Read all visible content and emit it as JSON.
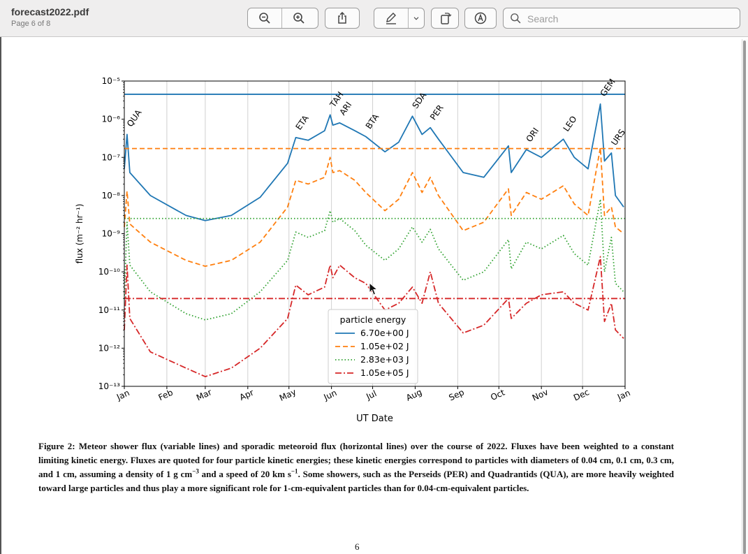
{
  "window": {
    "doc_title": "forecast2022.pdf",
    "doc_subtitle": "Page 6 of 8",
    "toolbar": {
      "icons": [
        "zoom-out-icon",
        "zoom-in-icon",
        "share-icon",
        "markup-pen-icon",
        "chevron-down-icon",
        "rotate-icon",
        "annotate-icon",
        "search-icon"
      ]
    },
    "search": {
      "placeholder": "Search",
      "value": ""
    }
  },
  "page": {
    "caption_lead": "Figure 2: Meteor shower flux (variable lines) and sporadic meteoroid flux (horizontal lines) over the course of 2022. Fluxes have been weighted to a constant limiting kinetic energy. Fluxes are quoted for four particle kinetic energies; these kinetic energies correspond to particles with diameters of 0.04 cm, 0.1 cm, 0.3 cm, and 1 cm, assuming a density of 1 g cm",
    "caption_exp1": "−3",
    "caption_mid": " and a speed of 20 km s",
    "caption_exp2": "−1",
    "caption_tail": ". Some showers, such as the Perseids (PER) and Quadrantids (QUA), are more heavily weighted toward large particles and thus play a more significant role for 1-cm-equivalent particles than for 0.04-cm-equivalent particles.",
    "page_number": "6"
  },
  "chart_data": {
    "type": "line",
    "xlabel": "UT Date",
    "ylabel": "flux (m⁻² hr⁻¹)",
    "yscale": "log",
    "ylim": [
      "1e-13",
      "1e-5"
    ],
    "xlim": [
      "2022-01-01",
      "2023-01-01"
    ],
    "x_ticks": [
      "Jan",
      "Feb",
      "Mar",
      "Apr",
      "May",
      "Jun",
      "Jul",
      "Aug",
      "Sep",
      "Oct",
      "Nov",
      "Dec",
      "Jan"
    ],
    "y_ticks": [
      "10⁻⁵",
      "10⁻⁶",
      "10⁻⁷",
      "10⁻⁸",
      "10⁻⁹",
      "10⁻¹⁰",
      "10⁻¹¹",
      "10⁻¹²",
      "10⁻¹³"
    ],
    "grid": "vertical",
    "legend": {
      "title": "particle energy",
      "placement": "lower-center"
    },
    "shower_labels": [
      {
        "name": "QUA",
        "date": "2022-01-03"
      },
      {
        "name": "ETA",
        "date": "2022-05-06"
      },
      {
        "name": "TAH",
        "date": "2022-05-31"
      },
      {
        "name": "ARI",
        "date": "2022-06-07"
      },
      {
        "name": "BTA",
        "date": "2022-06-26"
      },
      {
        "name": "SDA",
        "date": "2022-07-30"
      },
      {
        "name": "PER",
        "date": "2022-08-12"
      },
      {
        "name": "ORI",
        "date": "2022-10-21"
      },
      {
        "name": "LEO",
        "date": "2022-11-17"
      },
      {
        "name": "GEM",
        "date": "2022-12-14"
      },
      {
        "name": "URS",
        "date": "2022-12-22"
      }
    ],
    "series": [
      {
        "name": "6.70e+00 J",
        "color": "#1f77b4",
        "style": "solid",
        "sporadic": "4.5e-6",
        "points": [
          [
            "2022-01-01",
            "5e-8"
          ],
          [
            "2022-01-03",
            "4e-7"
          ],
          [
            "2022-01-05",
            "4e-8"
          ],
          [
            "2022-01-20",
            "1e-8"
          ],
          [
            "2022-02-15",
            "3e-9"
          ],
          [
            "2022-03-01",
            "2.2e-9"
          ],
          [
            "2022-03-20",
            "3e-9"
          ],
          [
            "2022-04-10",
            "9e-9"
          ],
          [
            "2022-04-30",
            "7e-8"
          ],
          [
            "2022-05-06",
            "3.3e-7"
          ],
          [
            "2022-05-15",
            "2.8e-7"
          ],
          [
            "2022-05-27",
            "5e-7"
          ],
          [
            "2022-05-31",
            "1.3e-6"
          ],
          [
            "2022-06-02",
            "7e-7"
          ],
          [
            "2022-06-07",
            "8e-7"
          ],
          [
            "2022-06-18",
            "5e-7"
          ],
          [
            "2022-06-26",
            "3.5e-7"
          ],
          [
            "2022-07-10",
            "1.4e-7"
          ],
          [
            "2022-07-20",
            "2.5e-7"
          ],
          [
            "2022-07-30",
            "1.2e-6"
          ],
          [
            "2022-08-06",
            "4e-7"
          ],
          [
            "2022-08-12",
            "6e-7"
          ],
          [
            "2022-08-18",
            "3e-7"
          ],
          [
            "2022-09-05",
            "4e-8"
          ],
          [
            "2022-09-20",
            "3e-8"
          ],
          [
            "2022-10-08",
            "2e-7"
          ],
          [
            "2022-10-10",
            "4e-8"
          ],
          [
            "2022-10-21",
            "1.6e-7"
          ],
          [
            "2022-11-01",
            "1e-7"
          ],
          [
            "2022-11-17",
            "3e-7"
          ],
          [
            "2022-11-25",
            "1e-7"
          ],
          [
            "2022-12-05",
            "5e-8"
          ],
          [
            "2022-12-14",
            "2.5e-6"
          ],
          [
            "2022-12-17",
            "8e-8"
          ],
          [
            "2022-12-22",
            "1.3e-7"
          ],
          [
            "2022-12-25",
            "1e-8"
          ],
          [
            "2022-12-31",
            "5e-9"
          ]
        ]
      },
      {
        "name": "1.05e+02 J",
        "color": "#ff7f0e",
        "style": "dashed",
        "sporadic": "1.7e-7",
        "points": [
          [
            "2022-01-01",
            "1.5e-9"
          ],
          [
            "2022-01-03",
            "1.3e-8"
          ],
          [
            "2022-01-05",
            "1.8e-9"
          ],
          [
            "2022-01-20",
            "6e-10"
          ],
          [
            "2022-02-15",
            "2e-10"
          ],
          [
            "2022-03-01",
            "1.4e-10"
          ],
          [
            "2022-03-20",
            "2e-10"
          ],
          [
            "2022-04-10",
            "6e-10"
          ],
          [
            "2022-04-30",
            "5e-9"
          ],
          [
            "2022-05-06",
            "2.5e-8"
          ],
          [
            "2022-05-15",
            "2e-8"
          ],
          [
            "2022-05-27",
            "3e-8"
          ],
          [
            "2022-05-31",
            "1e-7"
          ],
          [
            "2022-06-02",
            "4e-8"
          ],
          [
            "2022-06-07",
            "4.5e-8"
          ],
          [
            "2022-06-18",
            "2.5e-8"
          ],
          [
            "2022-06-26",
            "1.2e-8"
          ],
          [
            "2022-07-10",
            "4e-9"
          ],
          [
            "2022-07-20",
            "8e-9"
          ],
          [
            "2022-07-30",
            "4e-8"
          ],
          [
            "2022-08-06",
            "1.2e-8"
          ],
          [
            "2022-08-12",
            "3e-8"
          ],
          [
            "2022-08-18",
            "1e-8"
          ],
          [
            "2022-09-05",
            "1.2e-9"
          ],
          [
            "2022-09-20",
            "2e-9"
          ],
          [
            "2022-10-08",
            "1.5e-8"
          ],
          [
            "2022-10-10",
            "3e-9"
          ],
          [
            "2022-10-21",
            "1.2e-8"
          ],
          [
            "2022-11-01",
            "8e-9"
          ],
          [
            "2022-11-17",
            "1.8e-8"
          ],
          [
            "2022-11-25",
            "6e-9"
          ],
          [
            "2022-12-05",
            "3e-9"
          ],
          [
            "2022-12-14",
            "1.8e-7"
          ],
          [
            "2022-12-17",
            "3e-9"
          ],
          [
            "2022-12-22",
            "5e-9"
          ],
          [
            "2022-12-25",
            "1.5e-9"
          ],
          [
            "2022-12-31",
            "1e-9"
          ]
        ]
      },
      {
        "name": "2.83e+03 J",
        "color": "#2ca02c",
        "style": "dotted",
        "sporadic": "2.5e-9",
        "points": [
          [
            "2022-01-01",
            "2e-11"
          ],
          [
            "2022-01-03",
            "2e-9"
          ],
          [
            "2022-01-05",
            "1.5e-10"
          ],
          [
            "2022-01-20",
            "3e-11"
          ],
          [
            "2022-02-15",
            "8e-12"
          ],
          [
            "2022-03-01",
            "5.5e-12"
          ],
          [
            "2022-03-20",
            "8e-12"
          ],
          [
            "2022-04-10",
            "3e-11"
          ],
          [
            "2022-04-30",
            "2e-10"
          ],
          [
            "2022-05-06",
            "1.1e-9"
          ],
          [
            "2022-05-15",
            "8e-10"
          ],
          [
            "2022-05-27",
            "1.2e-9"
          ],
          [
            "2022-05-31",
            "4e-9"
          ],
          [
            "2022-06-02",
            "2e-9"
          ],
          [
            "2022-06-07",
            "2.5e-9"
          ],
          [
            "2022-06-18",
            "1.2e-9"
          ],
          [
            "2022-06-26",
            "5e-10"
          ],
          [
            "2022-07-10",
            "2e-10"
          ],
          [
            "2022-07-20",
            "4e-10"
          ],
          [
            "2022-07-30",
            "1.5e-9"
          ],
          [
            "2022-08-06",
            "6e-10"
          ],
          [
            "2022-08-12",
            "1.3e-9"
          ],
          [
            "2022-08-18",
            "4e-10"
          ],
          [
            "2022-09-05",
            "6e-11"
          ],
          [
            "2022-09-20",
            "1e-10"
          ],
          [
            "2022-10-08",
            "7e-10"
          ],
          [
            "2022-10-10",
            "1.2e-10"
          ],
          [
            "2022-10-21",
            "6e-10"
          ],
          [
            "2022-11-01",
            "4e-10"
          ],
          [
            "2022-11-17",
            "9e-10"
          ],
          [
            "2022-11-25",
            "3e-10"
          ],
          [
            "2022-12-05",
            "1.5e-10"
          ],
          [
            "2022-12-14",
            "8e-9"
          ],
          [
            "2022-12-17",
            "1e-10"
          ],
          [
            "2022-12-22",
            "8e-10"
          ],
          [
            "2022-12-25",
            "5e-11"
          ],
          [
            "2022-12-31",
            "3e-11"
          ]
        ]
      },
      {
        "name": "1.05e+05 J",
        "color": "#d62728",
        "style": "dashdot",
        "sporadic": "2e-11",
        "points": [
          [
            "2022-01-01",
            "3e-12"
          ],
          [
            "2022-01-03",
            "1.5e-10"
          ],
          [
            "2022-01-05",
            "6e-12"
          ],
          [
            "2022-01-20",
            "8e-13"
          ],
          [
            "2022-02-15",
            "3e-13"
          ],
          [
            "2022-03-01",
            "1.8e-13"
          ],
          [
            "2022-03-20",
            "3e-13"
          ],
          [
            "2022-04-10",
            "1e-12"
          ],
          [
            "2022-04-30",
            "6e-12"
          ],
          [
            "2022-05-06",
            "4.5e-11"
          ],
          [
            "2022-05-15",
            "2.5e-11"
          ],
          [
            "2022-05-27",
            "4e-11"
          ],
          [
            "2022-05-31",
            "1.5e-10"
          ],
          [
            "2022-06-02",
            "7e-11"
          ],
          [
            "2022-06-07",
            "1.5e-10"
          ],
          [
            "2022-06-18",
            "7e-11"
          ],
          [
            "2022-06-26",
            "5e-11"
          ],
          [
            "2022-07-10",
            "1e-11"
          ],
          [
            "2022-07-20",
            "1.5e-11"
          ],
          [
            "2022-07-30",
            "4e-11"
          ],
          [
            "2022-08-06",
            "1.5e-11"
          ],
          [
            "2022-08-12",
            "1e-10"
          ],
          [
            "2022-08-18",
            "1.5e-11"
          ],
          [
            "2022-09-05",
            "2.5e-12"
          ],
          [
            "2022-09-20",
            "4e-12"
          ],
          [
            "2022-10-08",
            "2e-11"
          ],
          [
            "2022-10-10",
            "6e-12"
          ],
          [
            "2022-10-21",
            "1.5e-11"
          ],
          [
            "2022-11-01",
            "2.5e-11"
          ],
          [
            "2022-11-17",
            "3e-11"
          ],
          [
            "2022-11-25",
            "1.5e-11"
          ],
          [
            "2022-12-05",
            "1e-11"
          ],
          [
            "2022-12-14",
            "2.5e-10"
          ],
          [
            "2022-12-17",
            "5e-12"
          ],
          [
            "2022-12-22",
            "1.5e-11"
          ],
          [
            "2022-12-25",
            "3e-12"
          ],
          [
            "2022-12-31",
            "1.8e-12"
          ]
        ]
      }
    ]
  }
}
